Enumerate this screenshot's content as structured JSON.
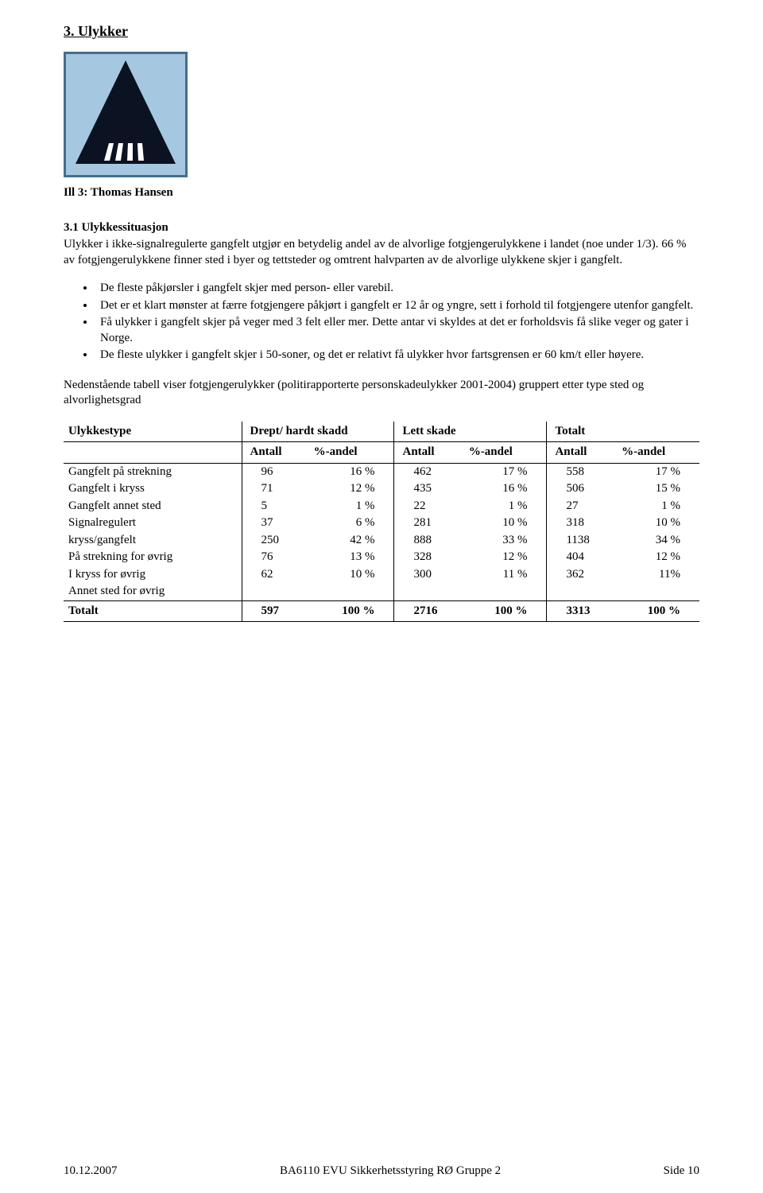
{
  "section": {
    "number": "3.",
    "title": "Ulykker",
    "heading_text": "3. Ulykker"
  },
  "sign": {
    "border_color": "#446d8f",
    "background_color": "#a6c7e0",
    "triangle_color": "#0b1222",
    "stripe_color": "#ffffff",
    "caption": "Ill 3: Thomas Hansen"
  },
  "subsection": {
    "heading": "3.1 Ulykkessituasjon",
    "para1": "Ulykker i ikke-signalregulerte gangfelt utgjør en betydelig andel av de alvorlige fotgjengerulykkene i landet (noe under 1/3). 66 % av fotgjengerulykkene finner sted i byer og tettsteder og omtrent halvparten av de alvorlige ulykkene skjer i gangfelt.",
    "bullets": [
      "De fleste påkjørsler i gangfelt skjer med person- eller varebil.",
      "Det er et klart mønster at færre fotgjengere påkjørt i gangfelt er 12 år og yngre, sett i forhold til fotgjengere utenfor gangfelt.",
      "Få ulykker i gangfelt skjer på veger med 3 felt eller mer. Dette antar vi skyldes at det er forholdsvis få slike veger og gater i Norge.",
      "De fleste ulykker i gangfelt skjer i 50-soner, og det er relativt få ulykker hvor fartsgrensen er 60 km/t eller høyere."
    ],
    "para2": "Nedenstående tabell viser fotgjengerulykker (politirapporterte personskadeulykker 2001-2004) gruppert etter type sted og alvorlighetsgrad"
  },
  "table": {
    "col_type": "Ulykkestype",
    "group1": "Drept/ hardt skadd",
    "group2": "Lett skade",
    "group3": "Totalt",
    "sub_antall": "Antall",
    "sub_pct": "%-andel",
    "rows": [
      {
        "label": "Gangfelt på strekning",
        "a1": "96",
        "p1": "16 %",
        "a2": "462",
        "p2": "17 %",
        "a3": "558",
        "p3": "17 %"
      },
      {
        "label": "Gangfelt i kryss",
        "a1": "71",
        "p1": "12 %",
        "a2": "435",
        "p2": "16 %",
        "a3": "506",
        "p3": "15 %"
      },
      {
        "label": "Gangfelt annet sted",
        "a1": "5",
        "p1": "1 %",
        "a2": "22",
        "p2": "1 %",
        "a3": "27",
        "p3": "1 %"
      },
      {
        "label": "Signalregulert",
        "a1": "37",
        "p1": "6 %",
        "a2": "281",
        "p2": "10 %",
        "a3": "318",
        "p3": "10 %"
      },
      {
        "label": "kryss/gangfelt",
        "a1": "250",
        "p1": "42 %",
        "a2": "888",
        "p2": "33 %",
        "a3": "1138",
        "p3": "34 %"
      },
      {
        "label": "På strekning for øvrig",
        "a1": "76",
        "p1": "13 %",
        "a2": "328",
        "p2": "12 %",
        "a3": "404",
        "p3": "12 %"
      },
      {
        "label": "I kryss for øvrig",
        "a1": "62",
        "p1": "10 %",
        "a2": "300",
        "p2": "11 %",
        "a3": "362",
        "p3": "11%"
      },
      {
        "label": "Annet sted for øvrig",
        "a1": "",
        "p1": "",
        "a2": "",
        "p2": "",
        "a3": "",
        "p3": ""
      }
    ],
    "total": {
      "label": "Totalt",
      "a1": "597",
      "p1": "100 %",
      "a2": "2716",
      "p2": "100 %",
      "a3": "3313",
      "p3": "100 %"
    }
  },
  "footer": {
    "date": "10.12.2007",
    "center": "BA6110 EVU Sikkerhetsstyring RØ Gruppe 2",
    "page": "Side 10"
  }
}
